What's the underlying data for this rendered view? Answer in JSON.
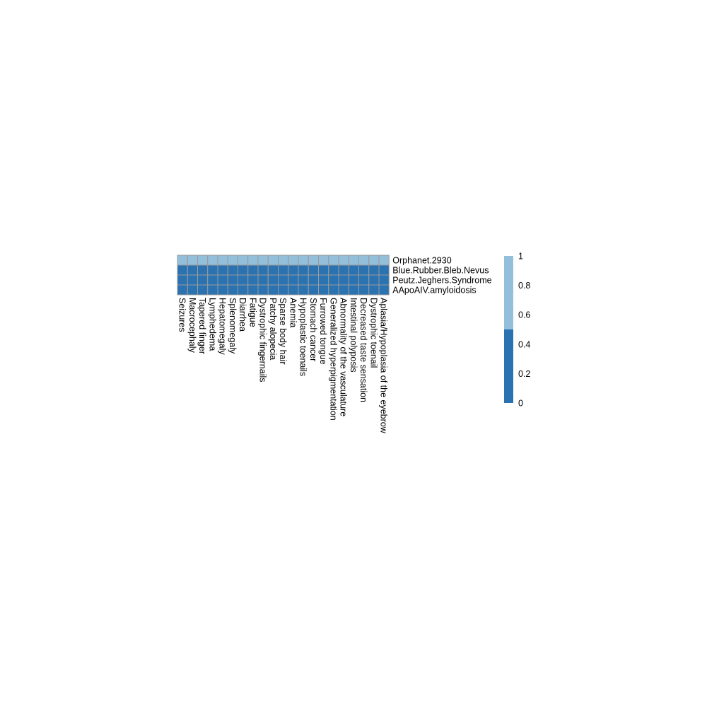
{
  "chart_data": {
    "type": "heatmap",
    "rows": [
      "Orphanet.2930",
      "Blue.Rubber.Bleb.Nevus",
      "Peutz.Jeghers.Syndrome",
      "AApoAIV.amyloidosis"
    ],
    "columns": [
      "Seizures",
      "Macrocephaly",
      "Tapered finger",
      "Lymphedema",
      "Hepatomegaly",
      "Splenomegaly",
      "Diarrhea",
      "Fatigue",
      "Dystrophic fingernails",
      "Patchy alopecia",
      "Sparse body hair",
      "Anemia",
      "Hypoplastic toenails",
      "Stomach cancer",
      "Furrowed tongue",
      "Generalized hyperpigmentation",
      "Abnormality of the vasculature",
      "Intestinal polyposis",
      "Decreased taste sensation",
      "Dystrophic toenail",
      "Aplasia/Hypoplasia of the eyebrow"
    ],
    "values": [
      [
        1,
        1,
        1,
        1,
        1,
        1,
        1,
        1,
        1,
        1,
        1,
        1,
        1,
        1,
        1,
        1,
        1,
        1,
        1,
        1,
        1
      ],
      [
        0,
        0,
        0,
        0,
        0,
        0,
        0,
        0,
        0,
        0,
        0,
        0,
        0,
        0,
        0,
        0,
        0,
        0,
        0,
        0,
        0
      ],
      [
        0,
        0,
        0,
        0,
        0,
        0,
        0,
        0,
        0,
        0,
        0,
        0,
        0,
        0,
        0,
        0,
        0,
        0,
        0,
        0,
        0
      ],
      [
        0,
        0,
        0,
        0,
        0,
        0,
        0,
        0,
        0,
        0,
        0,
        0,
        0,
        0,
        0,
        0,
        0,
        0,
        0,
        0,
        0
      ]
    ],
    "colors": {
      "low": "#2b72b1",
      "high": "#93bfdb",
      "cell_border": "#9a9a9a"
    },
    "threshold": 0.5,
    "legend": {
      "ticks": [
        "0",
        "0.2",
        "0.4",
        "0.6",
        "0.8",
        "1"
      ],
      "range": [
        0,
        1
      ],
      "placement": "right"
    }
  }
}
